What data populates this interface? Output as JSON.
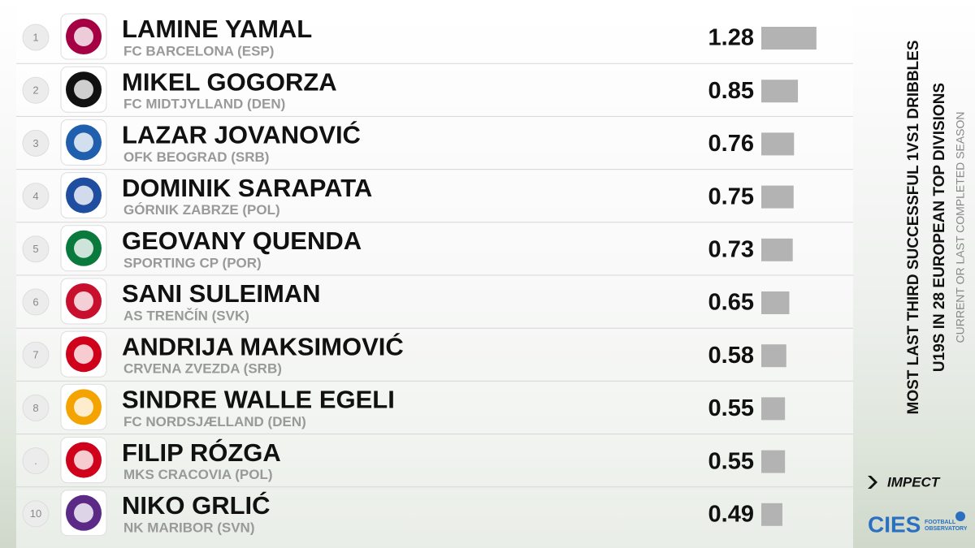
{
  "chart_data": {
    "type": "bar",
    "orientation": "horizontal",
    "title": [
      "MOST LAST THIRD SUCCESSFUL 1VS1 DRIBBLES",
      "U19S IN 28 EUROPEAN TOP DIVISIONS"
    ],
    "subtitle": "CURRENT OR LAST COMPLETED SEASON",
    "ranks": [
      "1",
      "2",
      "3",
      "4",
      "5",
      "6",
      "7",
      "8",
      ".",
      "10"
    ],
    "categories": [
      "LAMINE YAMAL",
      "MIKEL GOGORZA",
      "LAZAR JOVANOVIĆ",
      "DOMINIK SARAPATA",
      "GEOVANY QUENDA",
      "SANI SULEIMAN",
      "ANDRIJA MAKSIMOVIĆ",
      "SINDRE WALLE EGELI",
      "FILIP RÓZGA",
      "NIKO GRLIĆ"
    ],
    "clubs": [
      "FC BARCELONA (ESP)",
      "FC MIDTJYLLAND (DEN)",
      "OFK BEOGRAD (SRB)",
      "GÓRNIK ZABRZE (POL)",
      "SPORTING CP (POR)",
      "AS TRENČÍN (SVK)",
      "CRVENA ZVEZDA (SRB)",
      "FC NORDSJÆLLAND (DEN)",
      "MKS CRACOVIA (POL)",
      "NK MARIBOR (SVN)"
    ],
    "values": [
      1.28,
      0.85,
      0.76,
      0.75,
      0.73,
      0.65,
      0.58,
      0.55,
      0.55,
      0.49
    ],
    "color": "#b3b3b3",
    "brands": {
      "impect": "IMPECT",
      "cies": "CIES",
      "cies_sub": "FOOTBALL OBSERVATORY"
    }
  }
}
